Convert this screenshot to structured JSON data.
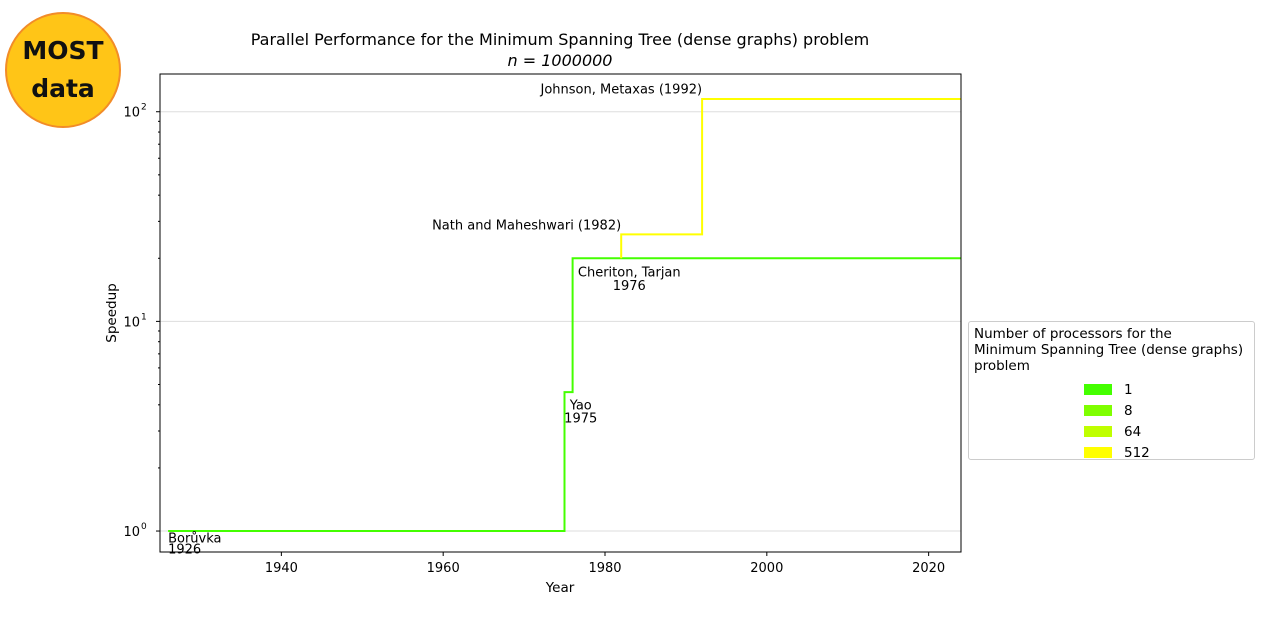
{
  "logo": {
    "line1": "MOST",
    "line2": "data"
  },
  "chart_data": {
    "type": "line",
    "title": "Parallel Performance for the Minimum Spanning Tree (dense graphs) problem",
    "subtitle": "n = 1000000",
    "xlabel": "Year",
    "ylabel": "Speedup",
    "xlim": [
      1925,
      2024
    ],
    "ylim_log10": [
      -0.1,
      2.18
    ],
    "yscale": "log",
    "x_ticks": [
      1940,
      1960,
      1980,
      2000,
      2020
    ],
    "y_ticks": [
      {
        "value": 1,
        "label": "10",
        "exp": "0"
      },
      {
        "value": 10,
        "label": "10",
        "exp": "1"
      },
      {
        "value": 100,
        "label": "10",
        "exp": "2"
      }
    ],
    "grid": "horizontal",
    "series": [
      {
        "color": "#44ff00",
        "points": [
          [
            1926,
            1
          ],
          [
            1975,
            1
          ],
          [
            1975,
            4.6
          ],
          [
            1976,
            4.6
          ],
          [
            1976,
            20
          ],
          [
            2024,
            20
          ]
        ]
      },
      {
        "color": "#ffff00",
        "points": [
          [
            1982,
            20
          ],
          [
            1982,
            26
          ],
          [
            1992,
            26
          ],
          [
            1992,
            115
          ],
          [
            2024,
            115
          ]
        ]
      }
    ],
    "annotations": [
      {
        "text": "Borůvka",
        "x": 1926,
        "y": 0.88,
        "anchor": "start"
      },
      {
        "text": "1926",
        "x": 1926,
        "y": 0.78,
        "anchor": "start"
      },
      {
        "text": "Yao",
        "x": 1977,
        "y": 3.8,
        "anchor": "middle"
      },
      {
        "text": "1975",
        "x": 1977,
        "y": 3.3,
        "anchor": "middle"
      },
      {
        "text": "Cheriton, Tarjan",
        "x": 1983,
        "y": 16.4,
        "anchor": "middle"
      },
      {
        "text": "1976",
        "x": 1983,
        "y": 14.1,
        "anchor": "middle"
      },
      {
        "text": "Nath and Maheshwari (1982)",
        "x": 1982,
        "y": 27.5,
        "anchor": "end"
      },
      {
        "text": "Johnson, Metaxas (1992)",
        "x": 1992,
        "y": 122,
        "anchor": "end"
      }
    ],
    "legend": {
      "title": "Number of processors for the\nMinimum Spanning Tree (dense graphs)\nproblem",
      "placement": "right",
      "items": [
        {
          "label": "1",
          "color": "#44ff00"
        },
        {
          "label": "8",
          "color": "#7fff00"
        },
        {
          "label": "64",
          "color": "#bfff00"
        },
        {
          "label": "512",
          "color": "#ffff00"
        }
      ]
    }
  }
}
